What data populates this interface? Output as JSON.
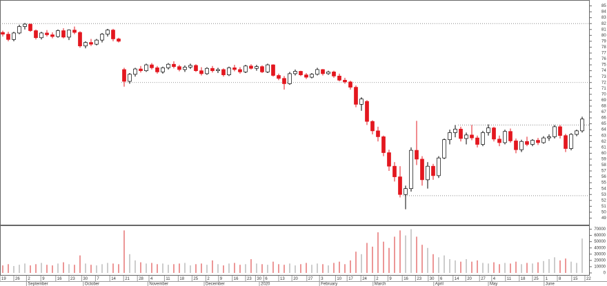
{
  "chart_data": {
    "type": "candlestick",
    "ohlc": [
      [
        80.5,
        80.8,
        79.8,
        80.2
      ],
      [
        80.2,
        80.6,
        79,
        79.3
      ],
      [
        79.3,
        80.6,
        79,
        80.4
      ],
      [
        80.4,
        81.8,
        80.2,
        81.5
      ],
      [
        81.5,
        82.1,
        81,
        81.9
      ],
      [
        81.9,
        82,
        80.6,
        80.8
      ],
      [
        80.8,
        81,
        79.3,
        79.6
      ],
      [
        79.6,
        80.6,
        79.3,
        80.4
      ],
      [
        80.4,
        80.9,
        79.8,
        80.1
      ],
      [
        80.1,
        80.5,
        79.5,
        79.8
      ],
      [
        79.8,
        81,
        79.6,
        80.8
      ],
      [
        80.8,
        81.2,
        79.5,
        79.7
      ],
      [
        79.7,
        81,
        79.2,
        80.9
      ],
      [
        80.9,
        81.5,
        80.2,
        80.5
      ],
      [
        80.5,
        80.7,
        77.9,
        78.2
      ],
      [
        78.2,
        79,
        77.8,
        78.8
      ],
      [
        78.8,
        79.4,
        78.2,
        78.5
      ],
      [
        78.5,
        79.4,
        78.3,
        79.2
      ],
      [
        79.2,
        80.4,
        78.8,
        80.2
      ],
      [
        80.2,
        81.1,
        79.8,
        80.9
      ],
      [
        80.9,
        81.1,
        79,
        79.4
      ],
      [
        79.4,
        79.6,
        78.8,
        79.0
      ],
      [
        74.2,
        74.5,
        71.3,
        72.2
      ],
      [
        72.2,
        73.6,
        71.8,
        73.4
      ],
      [
        73.4,
        74.5,
        73,
        74.3
      ],
      [
        74.3,
        74.8,
        73.7,
        74.0
      ],
      [
        74,
        75.2,
        73.8,
        75
      ],
      [
        75,
        75.3,
        74.2,
        74.5
      ],
      [
        74.5,
        74.8,
        73.5,
        73.8
      ],
      [
        73.8,
        74.7,
        73.5,
        74.5
      ],
      [
        74.5,
        75.3,
        74.2,
        75.1
      ],
      [
        75.1,
        75.6,
        74.4,
        74.7
      ],
      [
        74.7,
        75,
        73.9,
        74.2
      ],
      [
        74.2,
        74.9,
        73.8,
        74.6
      ],
      [
        74.6,
        75.2,
        74.3,
        74.9
      ],
      [
        74.9,
        75.1,
        73.8,
        74.0
      ],
      [
        74,
        74.6,
        73.2,
        73.5
      ],
      [
        73.5,
        74.6,
        73.3,
        74.4
      ],
      [
        74.4,
        74.8,
        73.7,
        74.0
      ],
      [
        74,
        74.5,
        73.6,
        74.2
      ],
      [
        74.2,
        74.4,
        73,
        73.3
      ],
      [
        73.3,
        74.7,
        73.1,
        74.5
      ],
      [
        74.5,
        75,
        73.9,
        74.2
      ],
      [
        74.2,
        74.6,
        73.5,
        73.8
      ],
      [
        73.8,
        75,
        73.6,
        74.8
      ],
      [
        74.8,
        75.1,
        74.2,
        74.4
      ],
      [
        74.4,
        75,
        74,
        74.7
      ],
      [
        74.7,
        74.9,
        73.6,
        73.8
      ],
      [
        73.8,
        75.2,
        73.6,
        75
      ],
      [
        75,
        75.1,
        73,
        73.2
      ],
      [
        73.2,
        73.5,
        72.4,
        72.7
      ],
      [
        72.7,
        73.1,
        70.8,
        71.8
      ],
      [
        71.8,
        73.8,
        71.6,
        73.5
      ],
      [
        73.5,
        74.2,
        73.2,
        73.9
      ],
      [
        73.9,
        74,
        73.1,
        73.3
      ],
      [
        73.3,
        73.6,
        72.6,
        72.9
      ],
      [
        72.9,
        73.6,
        72.7,
        73.4
      ],
      [
        73.4,
        74.5,
        73.2,
        74.2
      ],
      [
        74.2,
        74.3,
        73.2,
        73.5
      ],
      [
        73.5,
        74,
        73.3,
        73.8
      ],
      [
        73.8,
        74,
        72.8,
        73.1
      ],
      [
        73.1,
        73.5,
        72.2,
        72.4
      ],
      [
        72.4,
        72.8,
        71.8,
        72.1
      ],
      [
        72.1,
        72.3,
        70.8,
        71.2
      ],
      [
        71.2,
        71.5,
        67.8,
        68.3
      ],
      [
        68.3,
        69.5,
        67.2,
        69.2
      ],
      [
        68.8,
        69,
        64.8,
        65.4
      ],
      [
        65.4,
        65.6,
        63.2,
        63.8
      ],
      [
        63.8,
        64.5,
        62,
        62.8
      ],
      [
        62.8,
        63,
        59.5,
        60.1
      ],
      [
        60.1,
        60.6,
        57,
        57.8
      ],
      [
        57.8,
        58.5,
        55.2,
        56
      ],
      [
        56,
        57.8,
        52.5,
        53
      ],
      [
        53,
        54.5,
        50.5,
        54
      ],
      [
        54,
        61,
        53.5,
        60.5
      ],
      [
        60.5,
        65.5,
        58,
        59
      ],
      [
        59,
        59.5,
        54.5,
        55.5
      ],
      [
        55.5,
        58.5,
        54,
        57.8
      ],
      [
        57.8,
        58.2,
        55.5,
        56.2
      ],
      [
        56.2,
        59.5,
        55.8,
        59.2
      ],
      [
        59.2,
        62.5,
        59,
        62.3
      ],
      [
        62.3,
        64,
        61.5,
        63.5
      ],
      [
        63.5,
        64.8,
        62.7,
        64.1
      ],
      [
        64.1,
        64.5,
        62,
        62.5
      ],
      [
        62.5,
        63.5,
        61.5,
        63.1
      ],
      [
        63.1,
        64.8,
        62.2,
        62.6
      ],
      [
        62.6,
        63,
        61,
        61.5
      ],
      [
        61.5,
        63.8,
        61.2,
        63.5
      ],
      [
        63.5,
        64.9,
        63,
        64.3
      ],
      [
        64.3,
        64.5,
        62,
        62.4
      ],
      [
        62.4,
        63,
        61.2,
        61.8
      ],
      [
        61.8,
        64,
        61.5,
        63.7
      ],
      [
        63.7,
        64.2,
        61.8,
        62.1
      ],
      [
        62.1,
        62.5,
        60,
        60.6
      ],
      [
        60.6,
        62.3,
        60.2,
        62
      ],
      [
        62,
        62.8,
        61.2,
        61.5
      ],
      [
        61.5,
        62.4,
        61.2,
        62.2
      ],
      [
        62.2,
        62.6,
        61.4,
        61.8
      ],
      [
        61.8,
        62.9,
        61.6,
        62.6
      ],
      [
        62.6,
        63.2,
        62.1,
        62.8
      ],
      [
        62.8,
        64.8,
        62.5,
        64.5
      ],
      [
        64.5,
        64.8,
        62.5,
        63
      ],
      [
        63,
        63.3,
        60.2,
        60.8
      ],
      [
        60.8,
        63.4,
        60.5,
        63.2
      ],
      [
        63.2,
        64,
        62.9,
        63.8
      ],
      [
        63.8,
        66.2,
        63.5,
        65.8
      ]
    ],
    "volume": [
      12000,
      14000,
      11000,
      13000,
      15000,
      12000,
      14000,
      16000,
      13000,
      12000,
      15000,
      17000,
      14000,
      13000,
      28000,
      15000,
      13000,
      12000,
      14000,
      16000,
      15000,
      14000,
      68000,
      30000,
      20000,
      17000,
      15000,
      16000,
      14000,
      15000,
      13000,
      14000,
      15000,
      16000,
      12000,
      14000,
      15000,
      13000,
      20000,
      14000,
      12000,
      15000,
      16000,
      13000,
      14000,
      22000,
      15000,
      14000,
      13000,
      18000,
      14000,
      13000,
      15000,
      12000,
      14000,
      16000,
      13000,
      15000,
      14000,
      12000,
      16000,
      18000,
      14000,
      20000,
      34000,
      30000,
      48000,
      42000,
      65000,
      50000,
      40000,
      58000,
      68000,
      60000,
      70000,
      58000,
      45000,
      40000,
      30000,
      25000,
      28000,
      22000,
      20000,
      18000,
      22000,
      18000,
      20000,
      16000,
      15000,
      17000,
      14000,
      16000,
      15000,
      18000,
      14000,
      16000,
      15000,
      17000,
      19000,
      22000,
      25000,
      20000,
      23000,
      18000,
      16000,
      55000
    ],
    "up_color": "#ffffff",
    "down_color": "#e3171f",
    "volume_up_color": "#a9a9a9",
    "volume_down_color": "#e05050",
    "ylim": [
      48,
      86
    ],
    "yticks": [
      49,
      50,
      51,
      52,
      53,
      54,
      55,
      56,
      57,
      58,
      59,
      60,
      61,
      62,
      63,
      64,
      65,
      66,
      67,
      68,
      69,
      70,
      71,
      72,
      73,
      74,
      75,
      76,
      77,
      78,
      79,
      80,
      81,
      82,
      83,
      84,
      85
    ],
    "y2lim": [
      0,
      75000
    ],
    "y2ticks": [
      0,
      10000,
      20000,
      30000,
      40000,
      50000,
      60000,
      70000
    ],
    "levels": [
      {
        "value": 82,
        "from": 0
      },
      {
        "value": 72,
        "from": 22
      },
      {
        "value": 64.8,
        "from": 83
      },
      {
        "value": 52.8,
        "from": 73
      }
    ],
    "xticks": [
      {
        "value": 0,
        "label": "19"
      },
      {
        "value": 2.5,
        "label": "26"
      },
      {
        "value": 4.8,
        "label": "2"
      },
      {
        "value": 7.4,
        "label": "9"
      },
      {
        "value": 10.1,
        "label": "16"
      },
      {
        "value": 12.5,
        "label": "23"
      },
      {
        "value": 14.8,
        "label": "30"
      },
      {
        "value": 17.3,
        "label": "7"
      },
      {
        "value": 19.9,
        "label": "14"
      },
      {
        "value": 22.4,
        "label": "21"
      },
      {
        "value": 24.9,
        "label": "28"
      },
      {
        "value": 27,
        "label": "4"
      },
      {
        "value": 29.8,
        "label": "11"
      },
      {
        "value": 32.3,
        "label": "18"
      },
      {
        "value": 34.8,
        "label": "25"
      },
      {
        "value": 37.3,
        "label": "2"
      },
      {
        "value": 39.6,
        "label": "9"
      },
      {
        "value": 42.1,
        "label": "16"
      },
      {
        "value": 44.5,
        "label": "23"
      },
      {
        "value": 46.3,
        "label": "30"
      },
      {
        "value": 47.8,
        "label": "6"
      },
      {
        "value": 50.5,
        "label": "13"
      },
      {
        "value": 52.9,
        "label": "20"
      },
      {
        "value": 55.6,
        "label": "27"
      },
      {
        "value": 57.9,
        "label": "3"
      },
      {
        "value": 60.8,
        "label": "10"
      },
      {
        "value": 62.9,
        "label": "17"
      },
      {
        "value": 65.4,
        "label": "24"
      },
      {
        "value": 67.9,
        "label": "2"
      },
      {
        "value": 70.3,
        "label": "9"
      },
      {
        "value": 72.9,
        "label": "16"
      },
      {
        "value": 75.3,
        "label": "23"
      },
      {
        "value": 77.6,
        "label": "30"
      },
      {
        "value": 79.5,
        "label": "6"
      },
      {
        "value": 82.1,
        "label": "14"
      },
      {
        "value": 84.4,
        "label": "20"
      },
      {
        "value": 86.9,
        "label": "27"
      },
      {
        "value": 89.1,
        "label": "4"
      },
      {
        "value": 91.6,
        "label": "11"
      },
      {
        "value": 94.1,
        "label": "18"
      },
      {
        "value": 96.5,
        "label": "25"
      },
      {
        "value": 98.6,
        "label": "1"
      },
      {
        "value": 101,
        "label": "8"
      },
      {
        "value": 103.6,
        "label": "15"
      },
      {
        "value": 106,
        "label": "22"
      }
    ],
    "months": [
      {
        "value": 4.8,
        "label": "September"
      },
      {
        "value": 15.1,
        "label": "October"
      },
      {
        "value": 26.8,
        "label": "November"
      },
      {
        "value": 37,
        "label": "December"
      },
      {
        "value": 47,
        "label": "2020"
      },
      {
        "value": 57.9,
        "label": "February"
      },
      {
        "value": 67.6,
        "label": "March"
      },
      {
        "value": 78.6,
        "label": "April"
      },
      {
        "value": 88.5,
        "label": "May"
      },
      {
        "value": 98.6,
        "label": "June"
      }
    ]
  }
}
